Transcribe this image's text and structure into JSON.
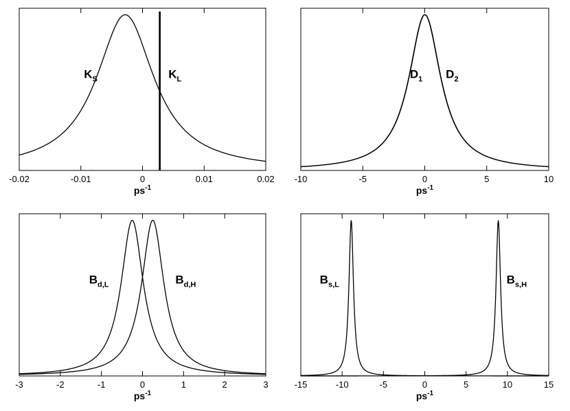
{
  "chart_data": [
    {
      "type": "line",
      "xlabel": "ps",
      "xlabel_sup": "-1",
      "xlim": [
        -0.02,
        0.02
      ],
      "ylim": [
        0,
        1
      ],
      "xticks": [
        -0.02,
        -0.01,
        0,
        0.01,
        0.02
      ],
      "xtick_labels": [
        "-0.02",
        "-0.01",
        "0",
        "0.01",
        "0.02"
      ],
      "series": [
        {
          "name": "K_S",
          "label_main": "K",
          "label_sub": "S",
          "kind": "lorentzian",
          "center": -0.0028,
          "width": 0.0057,
          "peak": 0.96,
          "label_x": -0.0095,
          "label_y": 0.57
        },
        {
          "name": "K_L",
          "label_main": "K",
          "label_sub": "L",
          "kind": "vline",
          "center": 0.0028,
          "top": 0.98,
          "label_x": 0.0042,
          "label_y": 0.57
        }
      ]
    },
    {
      "type": "line",
      "xlabel": "ps",
      "xlabel_sup": "-1",
      "xlim": [
        -10,
        10
      ],
      "ylim": [
        0,
        1
      ],
      "xticks": [
        -10,
        -5,
        0,
        5,
        10
      ],
      "xtick_labels": [
        "-10",
        "-5",
        "0",
        "5",
        "10"
      ],
      "series": [
        {
          "name": "D_1",
          "label_main": "D",
          "label_sub": "1",
          "kind": "lorentzian",
          "center": 0,
          "width": 1.57,
          "peak": 0.96,
          "label_x": -1.2,
          "label_y": 0.57
        },
        {
          "name": "D_2",
          "label_main": "D",
          "label_sub": "2",
          "kind": "lorentzian",
          "center": 0.02,
          "width": 1.57,
          "peak": 0.96,
          "label_x": 1.7,
          "label_y": 0.57
        }
      ]
    },
    {
      "type": "line",
      "xlabel": "ps",
      "xlabel_sup": "-1",
      "xlim": [
        -3,
        3
      ],
      "ylim": [
        0,
        1
      ],
      "xticks": [
        -3,
        -2,
        -1,
        0,
        1,
        2,
        3
      ],
      "xtick_labels": [
        "-3",
        "-2",
        "-1",
        "0",
        "1",
        "2",
        "3"
      ],
      "series": [
        {
          "name": "B_d,L",
          "label_main": "B",
          "label_sub": "d,L",
          "kind": "lorentzian",
          "center": -0.25,
          "width": 0.33,
          "peak": 0.96,
          "label_x": -1.3,
          "label_y": 0.57
        },
        {
          "name": "B_d,H",
          "label_main": "B",
          "label_sub": "d,H",
          "kind": "lorentzian",
          "center": 0.25,
          "width": 0.33,
          "peak": 0.96,
          "label_x": 0.8,
          "label_y": 0.57
        }
      ]
    },
    {
      "type": "line",
      "xlabel": "ps",
      "xlabel_sup": "-1",
      "xlim": [
        -15,
        15
      ],
      "ylim": [
        0,
        1
      ],
      "xticks": [
        -15,
        -10,
        -5,
        0,
        5,
        10,
        15
      ],
      "xtick_labels": [
        "-15",
        "-10",
        "-5",
        "0",
        "5",
        "10",
        "15"
      ],
      "series": [
        {
          "name": "B_s,L",
          "label_main": "B",
          "label_sub": "s,L",
          "kind": "lorentzian",
          "center": -8.9,
          "width": 0.33,
          "peak": 0.96,
          "label_x": -12.7,
          "label_y": 0.57
        },
        {
          "name": "B_s,H",
          "label_main": "B",
          "label_sub": "s,H",
          "kind": "lorentzian",
          "center": 8.9,
          "width": 0.33,
          "peak": 0.96,
          "label_x": 9.9,
          "label_y": 0.57
        }
      ]
    }
  ]
}
